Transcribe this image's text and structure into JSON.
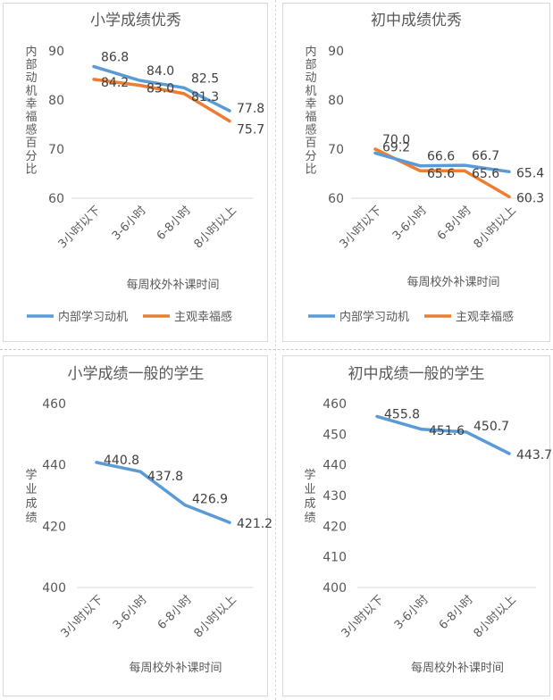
{
  "colors": {
    "blue": "#5b9bd5",
    "orange": "#ed7d31",
    "grid": "#d9d9d9"
  },
  "chart_data": [
    {
      "type": "line",
      "title": "小学成绩优秀",
      "xlabel": "每周校外补课时间",
      "ylabel": "内部动机幸福感百分比",
      "ylabel_chars": [
        "内",
        "部",
        "动",
        "机",
        "幸",
        "福",
        "感",
        "百",
        "分",
        "比"
      ],
      "categories": [
        "3小时以下",
        "3-6小时",
        "6-8小时",
        "8小时以上"
      ],
      "ylim": [
        60,
        90
      ],
      "yticks": [
        "90",
        "80",
        "70",
        "60"
      ],
      "ytick_values": [
        90,
        80,
        70,
        60
      ],
      "legend_position": "bottom",
      "series": [
        {
          "name": "内部学习动机",
          "color": "#5b9bd5",
          "values": [
            86.8,
            84.0,
            82.5,
            77.8
          ],
          "labels": [
            "86.8",
            "84.0",
            "82.5",
            "77.8"
          ]
        },
        {
          "name": "主观幸福感",
          "color": "#ed7d31",
          "values": [
            84.2,
            83.0,
            81.3,
            75.7
          ],
          "labels": [
            "84.2",
            "83.0",
            "81.3",
            "75.7"
          ]
        }
      ]
    },
    {
      "type": "line",
      "title": "初中成绩优秀",
      "xlabel": "每周校外补课时间",
      "ylabel": "内部动机幸福感百分比",
      "ylabel_chars": [
        "内",
        "部",
        "动",
        "机",
        "幸",
        "福",
        "感",
        "百",
        "分",
        "比"
      ],
      "categories": [
        "3小时以下",
        "3-6小时",
        "6-8小时",
        "8小时以上"
      ],
      "ylim": [
        60,
        90
      ],
      "yticks": [
        "90",
        "80",
        "70",
        "60"
      ],
      "ytick_values": [
        90,
        80,
        70,
        60
      ],
      "legend_position": "bottom",
      "series": [
        {
          "name": "内部学习动机",
          "color": "#5b9bd5",
          "values": [
            69.2,
            66.6,
            66.7,
            65.4
          ],
          "labels": [
            "69.2",
            "66.6",
            "66.7",
            "65.4"
          ]
        },
        {
          "name": "主观幸福感",
          "color": "#ed7d31",
          "values": [
            70.0,
            65.6,
            65.6,
            60.3
          ],
          "labels": [
            "70.0",
            "65.6",
            "65.6",
            "60.3"
          ]
        }
      ]
    },
    {
      "type": "line",
      "title": "小学成绩一般的学生",
      "xlabel": "每周校外补课时间",
      "ylabel": "学业成绩",
      "ylabel_chars": [
        "学",
        "业",
        "成",
        "绩"
      ],
      "categories": [
        "3小时以下",
        "3-6小时",
        "6-8小时",
        "8小时以上"
      ],
      "ylim": [
        400,
        460
      ],
      "yticks": [
        "460",
        "440",
        "420",
        "400"
      ],
      "ytick_values": [
        460,
        440,
        420,
        400
      ],
      "series": [
        {
          "name": "学业成绩",
          "color": "#5b9bd5",
          "values": [
            440.8,
            437.8,
            426.9,
            421.2
          ],
          "labels": [
            "440.8",
            "437.8",
            "426.9",
            "421.2"
          ]
        }
      ]
    },
    {
      "type": "line",
      "title": "初中成绩一般的学生",
      "xlabel": "每周校外补课时间",
      "ylabel": "学业成绩",
      "ylabel_chars": [
        "学",
        "业",
        "成",
        "绩"
      ],
      "categories": [
        "3小时以下",
        "3-6小时",
        "6-8小时",
        "8小时以上"
      ],
      "ylim": [
        400,
        460
      ],
      "yticks": [
        "460",
        "450",
        "440",
        "430",
        "420",
        "410",
        "400"
      ],
      "ytick_values": [
        460,
        450,
        440,
        430,
        420,
        410,
        400
      ],
      "series": [
        {
          "name": "学业成绩",
          "color": "#5b9bd5",
          "values": [
            455.8,
            451.6,
            450.7,
            443.7
          ],
          "labels": [
            "455.8",
            "451.6",
            "450.7",
            "443.7"
          ]
        }
      ]
    }
  ]
}
